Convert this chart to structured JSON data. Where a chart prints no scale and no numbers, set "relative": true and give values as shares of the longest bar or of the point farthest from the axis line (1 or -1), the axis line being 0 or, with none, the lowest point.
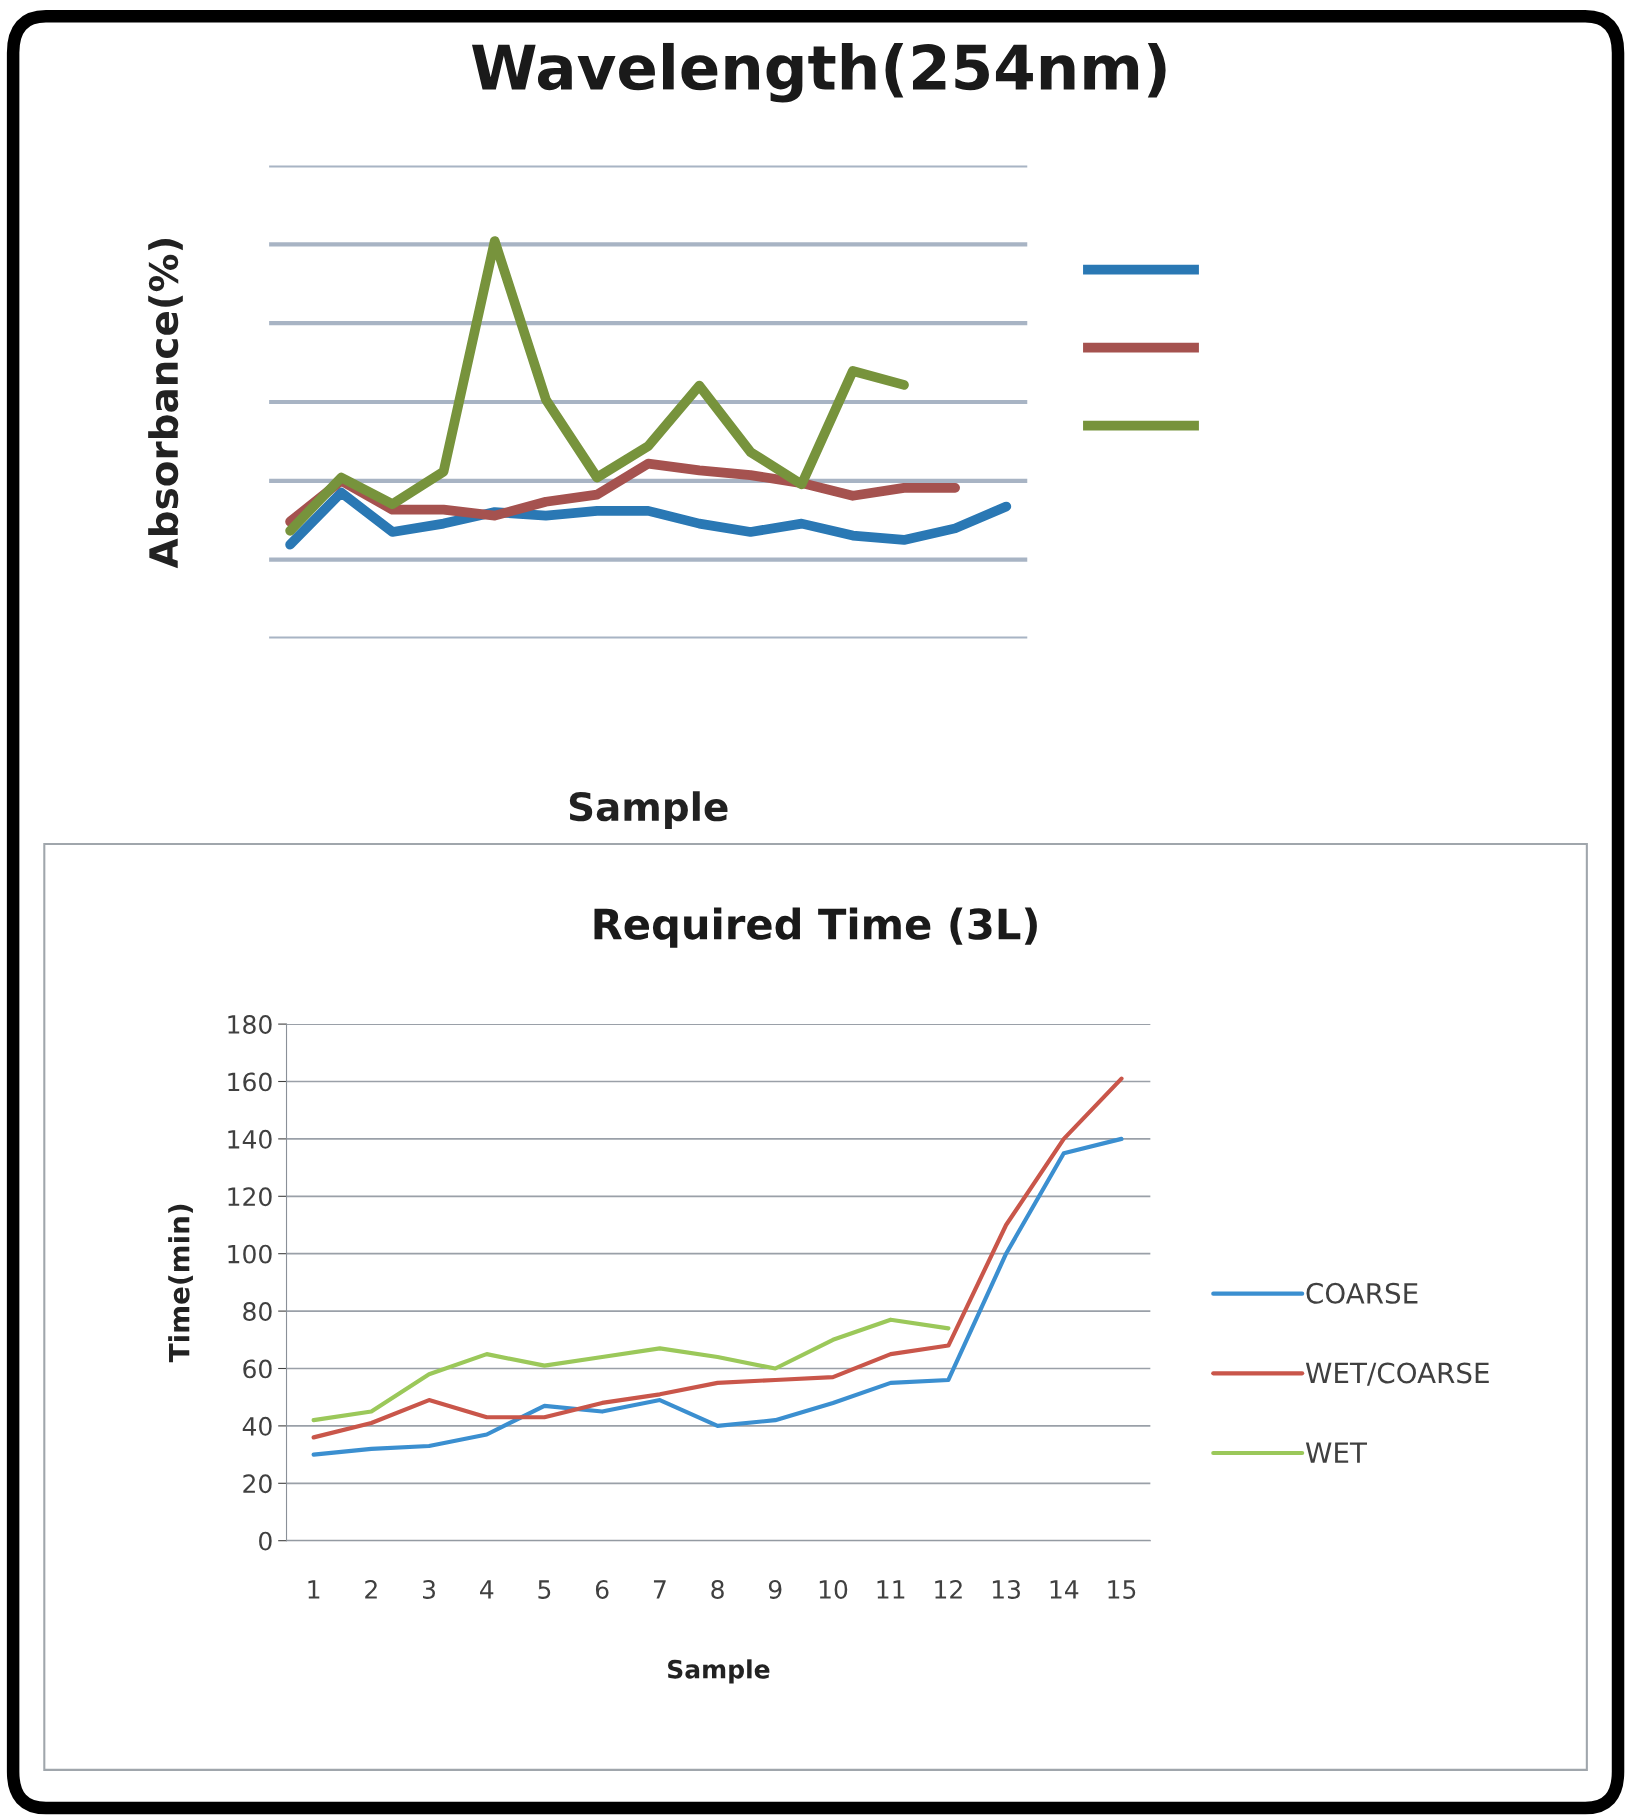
{
  "chart_data": [
    {
      "type": "line",
      "title": "Wavelength(254nm)",
      "xlabel": "Sample",
      "ylabel": "Absorbance(%)",
      "relative": true,
      "grid": "y",
      "tick_labels": false,
      "categories": [
        null,
        null,
        null,
        null,
        null,
        null,
        null,
        null,
        null,
        null,
        null,
        null,
        null,
        null,
        null
      ],
      "series": [
        {
          "color": "#2a78b4",
          "values": [
            0.236,
            0.367,
            0.268,
            0.289,
            0.318,
            0.309,
            0.321,
            0.321,
            0.289,
            0.268,
            0.289,
            0.259,
            0.248,
            0.277,
            0.332
          ]
        },
        {
          "color": "#a5524f",
          "values": [
            0.294,
            0.397,
            0.324,
            0.324,
            0.309,
            0.344,
            0.362,
            0.44,
            0.423,
            0.411,
            0.391,
            0.359,
            0.379,
            0.379,
            null
          ]
        },
        {
          "color": "#77933c",
          "values": [
            0.271,
            0.405,
            0.338,
            0.42,
            1.0,
            0.601,
            0.405,
            0.484,
            0.636,
            0.469,
            0.388,
            0.673,
            0.638,
            null,
            null
          ]
        }
      ]
    },
    {
      "type": "line",
      "title": "Required Time (3L)",
      "xlabel": "Sample",
      "ylabel": "Time(min)",
      "grid": "y",
      "legend": "right",
      "categories": [
        "1",
        "2",
        "3",
        "4",
        "5",
        "6",
        "7",
        "8",
        "9",
        "10",
        "11",
        "12",
        "13",
        "14",
        "15"
      ],
      "ylim": [
        0,
        180
      ],
      "yticks": [
        0,
        20,
        40,
        60,
        80,
        100,
        120,
        140,
        160,
        180
      ],
      "series": [
        {
          "name": "COARSE",
          "color": "#3b8fd0",
          "values": [
            30,
            32,
            33,
            37,
            47,
            45,
            49,
            40,
            42,
            48,
            55,
            56,
            100,
            135,
            140
          ]
        },
        {
          "name": "WET/COARSE",
          "color": "#c9564a",
          "values": [
            36,
            41,
            49,
            43,
            43,
            48,
            51,
            55,
            56,
            57,
            65,
            68,
            110,
            140,
            161
          ]
        },
        {
          "name": "WET",
          "color": "#9bc85a",
          "values": [
            42,
            45,
            58,
            65,
            61,
            64,
            67,
            64,
            60,
            70,
            77,
            74,
            null,
            null,
            null
          ]
        }
      ]
    }
  ]
}
